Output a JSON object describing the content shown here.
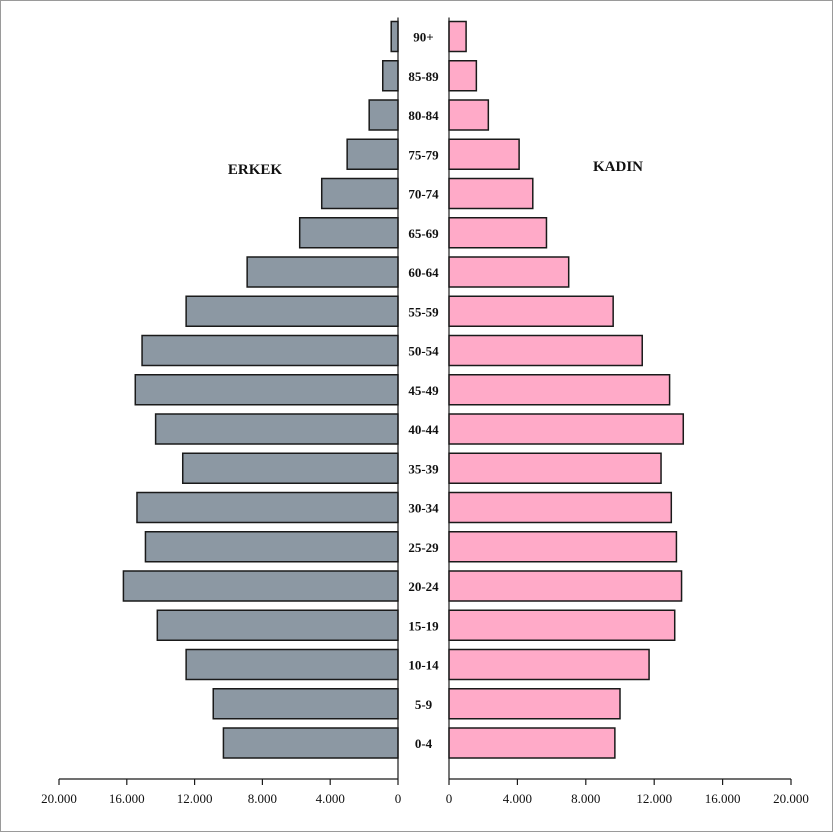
{
  "chart_data": {
    "type": "bar",
    "orientation": "horizontal",
    "subtype": "population-pyramid",
    "categories": [
      "0-4",
      "5-9",
      "10-14",
      "15-19",
      "20-24",
      "25-29",
      "30-34",
      "35-39",
      "40-44",
      "45-49",
      "50-54",
      "55-59",
      "60-64",
      "65-69",
      "70-74",
      "75-79",
      "80-84",
      "85-89",
      "90+"
    ],
    "series": [
      {
        "name": "ERKEK",
        "side": "left",
        "color": "#8c98a3",
        "values": [
          10300,
          10900,
          12500,
          14200,
          16200,
          14900,
          15400,
          12700,
          14300,
          15500,
          15100,
          12500,
          8900,
          5800,
          4500,
          3000,
          1700,
          900,
          400
        ]
      },
      {
        "name": "KADIN",
        "side": "right",
        "color": "#ffaac8",
        "values": [
          9700,
          10000,
          11700,
          13200,
          13600,
          13300,
          13000,
          12400,
          13700,
          12900,
          11300,
          9600,
          7000,
          5700,
          4900,
          4100,
          2300,
          1600,
          1000
        ]
      }
    ],
    "x_axis": {
      "range": [
        0,
        20000
      ],
      "ticks": [
        0,
        4000,
        8000,
        12000,
        16000,
        20000
      ],
      "tick_labels": [
        "0",
        "4.000",
        "8.000",
        "12.000",
        "16.000",
        "20.000"
      ]
    },
    "grid": false,
    "legend": "none"
  }
}
